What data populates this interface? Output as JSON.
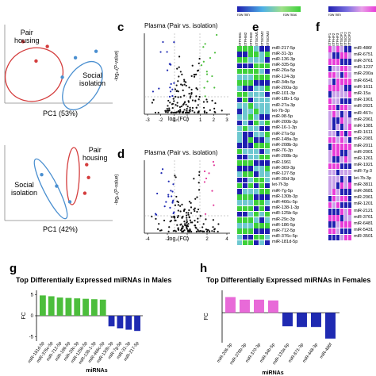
{
  "panel_labels": {
    "c": "c",
    "d": "d",
    "e": "e",
    "f": "f",
    "g": "g",
    "h": "h"
  },
  "pca_top": {
    "xlabel": "PC1 (53%)",
    "groups": [
      {
        "name": "Pair\nhousing",
        "color": "#d43d3d"
      },
      {
        "name": "Social\nisolation",
        "color": "#4a8fd0"
      }
    ]
  },
  "pca_bottom": {
    "xlabel": "PC1 (42%)",
    "groups": [
      {
        "name": "Pair\nhousing",
        "color": "#d43d3d"
      },
      {
        "name": "Social\nisolation",
        "color": "#4a8fd0"
      }
    ]
  },
  "volcano_c": {
    "title": "Plasma (Pair vs. isolation)",
    "xlabel": "log₂(FC)",
    "ylabel": "-log₁₀(P-value)",
    "xticks": [
      "-3",
      "-2",
      "-1",
      "0",
      "1",
      "2",
      "3"
    ],
    "up_color": "#4cbe3c",
    "down_color": "#1f2ab2"
  },
  "volcano_d": {
    "title": "Plasma (Pair vs. isolation)",
    "xlabel": "log₂(FC)",
    "ylabel": "-log₁₀(P-value)",
    "xticks": [
      "-4",
      "-2",
      "0",
      "2",
      "4"
    ],
    "up_color": "#e23c9c",
    "down_color": "#1f2ab2"
  },
  "heatmap_e": {
    "scale_left": "row min",
    "scale_right": "row max",
    "columns": [
      "STPHM1",
      "STPHM2",
      "STPHM3",
      "STSIOM1",
      "STSIOM2",
      "STSIOM3"
    ],
    "rows": [
      "miR-217-5p",
      "miR-31-3p",
      "miR-136-3p",
      "miR-335-5p",
      "miR-26a-5p",
      "miR-124-3p",
      "miR-34b-5p",
      "miR-200a-3p",
      "miR-101-3p",
      "miR-18b-1-5p",
      "miR-27a-3p",
      "let-7b-3p",
      "miR-98-5p",
      "miR-200b-3p",
      "miR-16-1-3p",
      "miR-27a-5p",
      "miR-148a-3p",
      "miR-208b-3p",
      "miR-76-3p",
      "miR-208b-3p",
      "miR-1961",
      "miR-369-3p",
      "miR-127-5p",
      "miR-30d-3p",
      "let-7f-3p",
      "miR-7g-5p",
      "miR-130b-3p",
      "miR-466c-5p",
      "miR-138-1-3p",
      "miR-125b-5p",
      "miR-29c-3p",
      "miR-186-5p",
      "miR-712-5p",
      "miR-376c-5p",
      "miR-181d-5p"
    ],
    "colors": {
      "low": "#1f1fb0",
      "high": "#3ed13a",
      "mid": "#6ec8d0"
    }
  },
  "heatmap_f": {
    "scale_left": "row min",
    "columns": [
      "STPHF1",
      "STPHF2",
      "STPHF3",
      "STSIOF1",
      "STSIOF2",
      "STSIOF3"
    ],
    "rows": [
      "miR-486f",
      "miR-6751",
      "miR-3761",
      "miR-1237",
      "miR-200a",
      "miR-6541",
      "miR-1611",
      "miR-15a",
      "miR-1901",
      "miR-2021",
      "miR-467c",
      "miR-2061",
      "miR-1381",
      "miR-1611",
      "miR-2081",
      "miR-2011",
      "miR-2001",
      "miR-1261",
      "miR-1921",
      "miR-7g-3",
      "let-7b-3p",
      "miR-3811",
      "miR-3681",
      "miR-2061",
      "miR-1201",
      "miR-2121",
      "miR-3761",
      "miR-6481",
      "miR-5431",
      "miR-3501"
    ],
    "colors": {
      "low": "#1f1fb0",
      "high": "#e83cd8",
      "mid": "#c8a0e8"
    }
  },
  "chart_data": [
    {
      "type": "scatter",
      "panel": "top PCA",
      "xlabel": "PC1 (53%)",
      "series": [
        {
          "name": "Pair housing",
          "points": [
            [
              -1.2,
              1.6
            ],
            [
              0.1,
              1.3
            ],
            [
              -0.5,
              0.4
            ]
          ]
        },
        {
          "name": "Social isolation",
          "points": [
            [
              1.6,
              0.6
            ],
            [
              2.7,
              1.0
            ],
            [
              0.9,
              -0.6
            ]
          ]
        }
      ]
    },
    {
      "type": "scatter",
      "panel": "bottom PCA",
      "xlabel": "PC1 (42%)",
      "series": [
        {
          "name": "Pair housing",
          "points": [
            [
              2.2,
              1.3
            ],
            [
              2.3,
              0.4
            ],
            [
              2.1,
              -0.7
            ]
          ]
        },
        {
          "name": "Social isolation",
          "points": [
            [
              -0.2,
              0.6
            ],
            [
              0.6,
              -0.2
            ],
            [
              1.3,
              -1.3
            ]
          ]
        }
      ]
    },
    {
      "type": "bar",
      "panel": "g",
      "title": "Top Differentially Expressed miRNAs in Males",
      "xlabel": "miRNAs",
      "ylabel": "FC",
      "ylim": [
        -6,
        6
      ],
      "yticks": [
        -5,
        0,
        5
      ],
      "categories": [
        "miR-181d-5p",
        "miR-376c-5p",
        "miR-712-5p",
        "miR-186-5p",
        "miR-29c-3p",
        "miR-125b-5p",
        "miR-138-1-3p",
        "miR-466c-5p",
        "miR-130b-3p",
        "miR-7g-5p",
        "miR-31-3p",
        "miR-217-5p"
      ],
      "values": [
        4.8,
        4.6,
        4.3,
        4.2,
        4.1,
        4.0,
        3.9,
        3.8,
        -2.5,
        -3.0,
        -3.3,
        -3.6
      ],
      "colors": [
        "#4cbe3c",
        "#4cbe3c",
        "#4cbe3c",
        "#4cbe3c",
        "#4cbe3c",
        "#4cbe3c",
        "#4cbe3c",
        "#4cbe3c",
        "#1f2ab2",
        "#1f2ab2",
        "#1f2ab2",
        "#1f2ab2"
      ]
    },
    {
      "type": "bar",
      "panel": "h",
      "title": "Top Differentially Expressed miRNAs in Females",
      "xlabel": "miRNAs",
      "ylabel": "FC",
      "ylim": [
        -8,
        6
      ],
      "categories": [
        "miR-206-3p",
        "miR-376b-3p",
        "miR-370-3p",
        "miR-34b-5p",
        "miR-133a-5p",
        "miR-871-3p",
        "miR-448-3p",
        "miR-486f"
      ],
      "values": [
        4.2,
        3.5,
        3.5,
        3.3,
        -3.6,
        -3.8,
        -3.8,
        -6.9
      ],
      "colors": [
        "#e86ad8",
        "#e86ad8",
        "#e86ad8",
        "#e86ad8",
        "#1f2ab2",
        "#1f2ab2",
        "#1f2ab2",
        "#1f2ab2"
      ]
    }
  ]
}
